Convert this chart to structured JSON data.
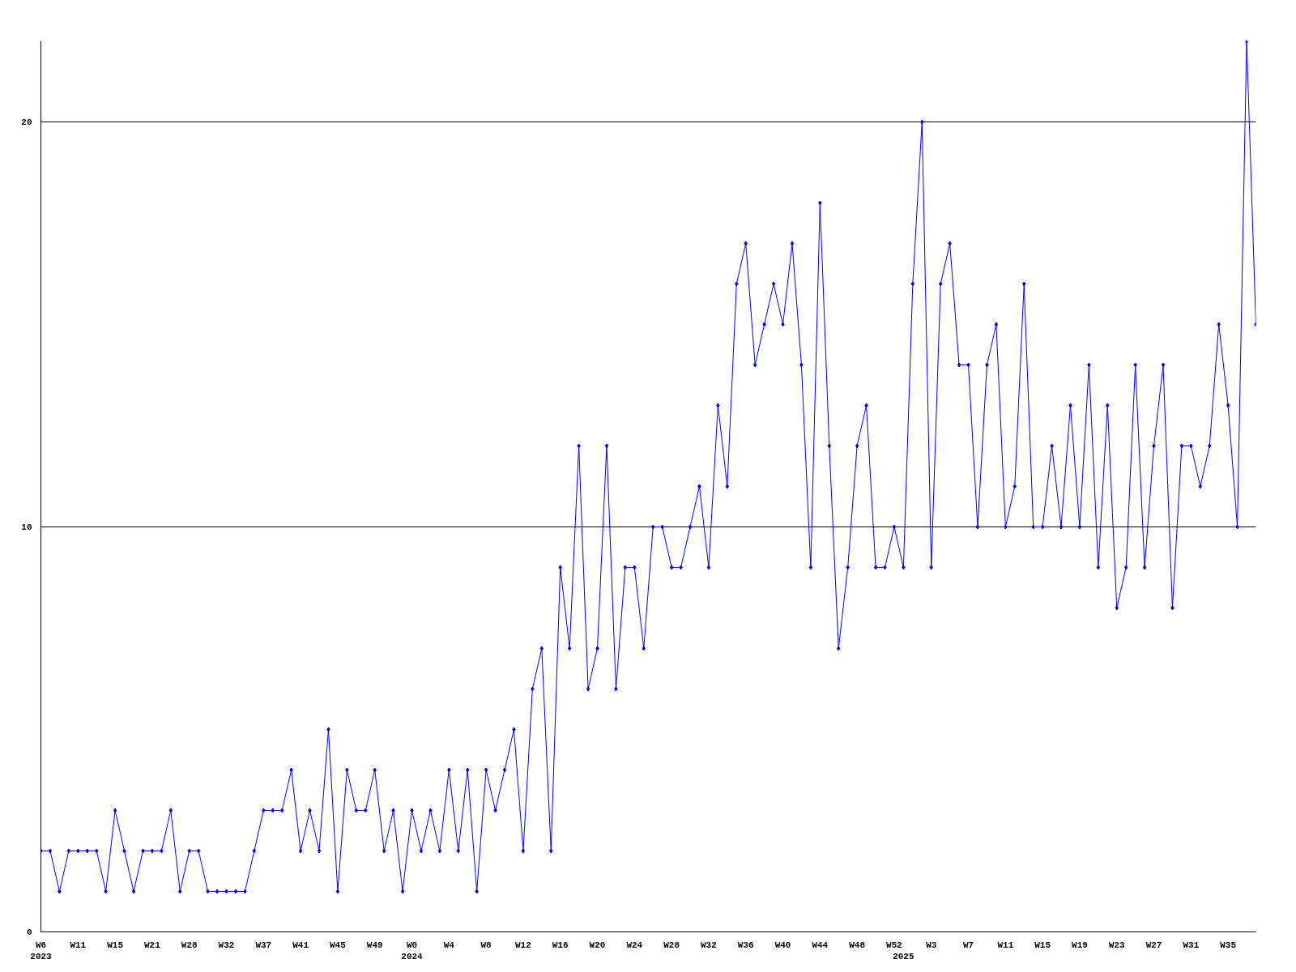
{
  "chart_data": {
    "type": "line",
    "categories": [
      "W6\n2023",
      null,
      null,
      null,
      "W11",
      null,
      null,
      null,
      "W15",
      null,
      null,
      null,
      "W21",
      null,
      null,
      null,
      "W28",
      null,
      null,
      null,
      "W32",
      null,
      null,
      null,
      "W37",
      null,
      null,
      null,
      "W41",
      null,
      null,
      null,
      "W45",
      null,
      null,
      null,
      "W49",
      null,
      null,
      null,
      "W0\n2024",
      null,
      null,
      null,
      "W4",
      null,
      null,
      null,
      "W8",
      null,
      null,
      null,
      "W12",
      null,
      null,
      null,
      "W16",
      null,
      null,
      null,
      "W20",
      null,
      null,
      null,
      "W24",
      null,
      null,
      null,
      "W28",
      null,
      null,
      null,
      "W32",
      null,
      null,
      null,
      "W36",
      null,
      null,
      null,
      "W40",
      null,
      null,
      null,
      "W44",
      null,
      null,
      null,
      "W48",
      null,
      null,
      null,
      "W52",
      "\n2025",
      null,
      null,
      "W3",
      null,
      null,
      null,
      "W7",
      null,
      null,
      null,
      "W11",
      null,
      null,
      null,
      "W15",
      null,
      null,
      null,
      "W19",
      null,
      null,
      null,
      "W23",
      null,
      null,
      null,
      "W27",
      null,
      null,
      null,
      "W31",
      null,
      null,
      null,
      "W35",
      null,
      null,
      null
    ],
    "series": [
      {
        "color": "#0000ff",
        "values": [
          2,
          2,
          1,
          2,
          2,
          2,
          2,
          1,
          3,
          2,
          1,
          2,
          2,
          2,
          3,
          1,
          2,
          2,
          1,
          1,
          1,
          1,
          1,
          2,
          3,
          3,
          3,
          4,
          2,
          3,
          2,
          5,
          1,
          4,
          3,
          3,
          4,
          2,
          3,
          1,
          3,
          2,
          3,
          2,
          4,
          2,
          4,
          1,
          4,
          3,
          4,
          5,
          2,
          6,
          7,
          2,
          9,
          7,
          12,
          6,
          7,
          12,
          6,
          9,
          9,
          7,
          10,
          10,
          9,
          9,
          10,
          11,
          9,
          13,
          11,
          16,
          17,
          14,
          15,
          16,
          15,
          17,
          14,
          9,
          18,
          12,
          7,
          9,
          12,
          13,
          9,
          9,
          10,
          9,
          16,
          20,
          9,
          16,
          17,
          14,
          14,
          10,
          14,
          15,
          10,
          11,
          16,
          10,
          10,
          12,
          10,
          13,
          10,
          14,
          9,
          13,
          8,
          9,
          14,
          9,
          12,
          14,
          8,
          12,
          12,
          11,
          12,
          15,
          13,
          10,
          22,
          15
        ]
      }
    ],
    "ylim": [
      0,
      22
    ],
    "yticks": [
      0,
      10,
      20
    ],
    "grid": "y",
    "marker": "diamond",
    "line_style": "solid"
  }
}
